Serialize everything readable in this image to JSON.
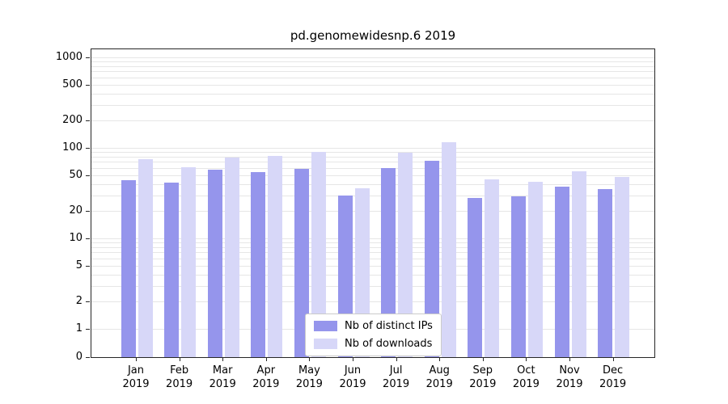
{
  "chart_data": {
    "type": "bar",
    "title": "pd.genomewidesnp.6 2019",
    "categories": [
      "Jan 2019",
      "Feb 2019",
      "Mar 2019",
      "Apr 2019",
      "May 2019",
      "Jun 2019",
      "Jul 2019",
      "Aug 2019",
      "Sep 2019",
      "Oct 2019",
      "Nov 2019",
      "Dec 2019"
    ],
    "series": [
      {
        "name": "Nb of distinct IPs",
        "color": "#9595ec",
        "values": [
          44,
          41,
          57,
          54,
          59,
          30,
          60,
          72,
          28,
          29,
          37,
          35
        ]
      },
      {
        "name": "Nb of downloads",
        "color": "#d7d7f8",
        "values": [
          75,
          61,
          79,
          82,
          91,
          36,
          89,
          115,
          45,
          42,
          55,
          48
        ]
      }
    ],
    "xlabel": "",
    "ylabel": "",
    "yscale": "symlog",
    "yticks": [
      0,
      1,
      2,
      5,
      10,
      20,
      50,
      100,
      200,
      500,
      1000
    ],
    "ylim": [
      0,
      1300
    ],
    "grid": true,
    "legend_position": "lower center"
  }
}
